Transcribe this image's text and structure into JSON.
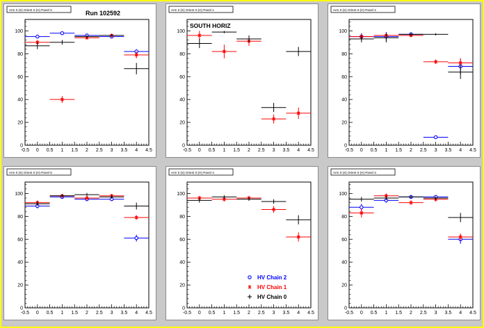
{
  "canvas": {
    "background": "#c9c9c9",
    "frame": "#ffff00",
    "frame_color": "#ffff00"
  },
  "run_label": "Run 102592",
  "side_label": "SOUTH HORIZ",
  "legend": [
    {
      "label": "HV Chain 2",
      "color": "#0000ff",
      "marker": "circle"
    },
    {
      "label": "HV Chain 1",
      "color": "#ff0000",
      "marker": "star"
    },
    {
      "label": "HV Chain 0",
      "color": "#000000",
      "marker": "plus"
    }
  ],
  "chart_data": [
    {
      "type": "scatter",
      "title": "Arm 0 (S) Orient 0 (H) Panel 0",
      "xlim": [
        -0.5,
        4.5
      ],
      "ylim": [
        0,
        110
      ],
      "xticks": [
        "-0.5",
        "0",
        "0.5",
        "1",
        "1.5",
        "2",
        "2.5",
        "3",
        "3.5",
        "4",
        "4.5"
      ],
      "yticks": [
        "0",
        "20",
        "40",
        "60",
        "80",
        "100"
      ],
      "series": [
        {
          "name": "HV Chain 2",
          "color": "#0000ff",
          "points": [
            {
              "x": 0,
              "y": 95,
              "e": 1
            },
            {
              "x": 1,
              "y": 98,
              "e": 1
            },
            {
              "x": 2,
              "y": 96,
              "e": 1
            },
            {
              "x": 3,
              "y": 95,
              "e": 1
            },
            {
              "x": 4,
              "y": 82,
              "e": 2
            }
          ]
        },
        {
          "name": "HV Chain 1",
          "color": "#ff0000",
          "points": [
            {
              "x": 0,
              "y": 90,
              "e": 2
            },
            {
              "x": 1,
              "y": 40,
              "e": 3
            },
            {
              "x": 2,
              "y": 94,
              "e": 1.5
            },
            {
              "x": 3,
              "y": 96,
              "e": 1.5
            },
            {
              "x": 4,
              "y": 79,
              "e": 3
            }
          ]
        },
        {
          "name": "HV Chain 0",
          "color": "#000000",
          "points": [
            {
              "x": 0,
              "y": 87,
              "e": 3
            },
            {
              "x": 1,
              "y": 90,
              "e": 2
            },
            {
              "x": 2,
              "y": 95,
              "e": 1.5
            },
            {
              "x": 3,
              "y": 96,
              "e": 1
            },
            {
              "x": 4,
              "y": 67,
              "e": 5
            }
          ]
        }
      ]
    },
    {
      "type": "scatter",
      "title": "Arm 0 (S) Orient 0 (H) Panel 1",
      "xlim": [
        -0.5,
        4.5
      ],
      "ylim": [
        0,
        110
      ],
      "xticks": [
        "-0.5",
        "0",
        "0.5",
        "1",
        "1.5",
        "2",
        "2.5",
        "3",
        "3.5",
        "4",
        "4.5"
      ],
      "yticks": [
        "0",
        "20",
        "40",
        "60",
        "80",
        "100"
      ],
      "series": [
        {
          "name": "HV Chain 2",
          "color": "#0000ff",
          "points": []
        },
        {
          "name": "HV Chain 1",
          "color": "#ff0000",
          "points": [
            {
              "x": 0,
              "y": 96,
              "e": 4
            },
            {
              "x": 1,
              "y": 82,
              "e": 6
            },
            {
              "x": 2,
              "y": 91,
              "e": 4
            },
            {
              "x": 3,
              "y": 23,
              "e": 4
            },
            {
              "x": 4,
              "y": 28,
              "e": 5
            }
          ]
        },
        {
          "name": "HV Chain 0",
          "color": "#000000",
          "points": [
            {
              "x": 0,
              "y": 89,
              "e": 4
            },
            {
              "x": 1,
              "y": 99,
              "e": 1
            },
            {
              "x": 2,
              "y": 93,
              "e": 3
            },
            {
              "x": 3,
              "y": 33,
              "e": 4
            },
            {
              "x": 4,
              "y": 82,
              "e": 4
            }
          ]
        }
      ]
    },
    {
      "type": "scatter",
      "title": "Arm 0 (S) Orient 0 (H) Panel 2",
      "xlim": [
        -0.5,
        4.5
      ],
      "ylim": [
        0,
        110
      ],
      "xticks": [
        "-0.5",
        "0",
        "0.5",
        "1",
        "1.5",
        "2",
        "2.5",
        "3",
        "3.5",
        "4",
        "4.5"
      ],
      "yticks": [
        "0",
        "20",
        "40",
        "60",
        "80",
        "100"
      ],
      "series": [
        {
          "name": "HV Chain 2",
          "color": "#0000ff",
          "points": [
            {
              "x": 0,
              "y": 95,
              "e": 3
            },
            {
              "x": 1,
              "y": 95,
              "e": 4
            },
            {
              "x": 2,
              "y": 97,
              "e": 1.5
            },
            {
              "x": 3,
              "y": 7,
              "e": 1
            },
            {
              "x": 4,
              "y": 69,
              "e": 7
            }
          ]
        },
        {
          "name": "HV Chain 1",
          "color": "#ff0000",
          "points": [
            {
              "x": 0,
              "y": 95,
              "e": 2
            },
            {
              "x": 1,
              "y": 96,
              "e": 2
            },
            {
              "x": 2,
              "y": 96,
              "e": 1.5
            },
            {
              "x": 3,
              "y": 73,
              "e": 2
            },
            {
              "x": 4,
              "y": 72,
              "e": 4
            }
          ]
        },
        {
          "name": "HV Chain 0",
          "color": "#000000",
          "points": [
            {
              "x": 0,
              "y": 93,
              "e": 3
            },
            {
              "x": 1,
              "y": 94,
              "e": 4
            },
            {
              "x": 2,
              "y": 97,
              "e": 1.5
            },
            {
              "x": 3,
              "y": 97,
              "e": 1
            },
            {
              "x": 4,
              "y": 64,
              "e": 6
            }
          ]
        }
      ]
    },
    {
      "type": "scatter",
      "title": "Arm 0 (S) Orient 0 (H) Panel 5",
      "xlim": [
        -0.5,
        4.5
      ],
      "ylim": [
        0,
        110
      ],
      "xticks": [
        "-0.5",
        "0",
        "0.5",
        "1",
        "1.5",
        "2",
        "2.5",
        "3",
        "3.5",
        "4",
        "4.5"
      ],
      "yticks": [
        "0",
        "20",
        "40",
        "60",
        "80",
        "100"
      ],
      "series": [
        {
          "name": "HV Chain 2",
          "color": "#0000ff",
          "points": [
            {
              "x": 0,
              "y": 89,
              "e": 2
            },
            {
              "x": 1,
              "y": 97,
              "e": 1.5
            },
            {
              "x": 2,
              "y": 95,
              "e": 1.5
            },
            {
              "x": 3,
              "y": 95,
              "e": 1.5
            },
            {
              "x": 4,
              "y": 61,
              "e": 3
            }
          ]
        },
        {
          "name": "HV Chain 1",
          "color": "#ff0000",
          "points": [
            {
              "x": 0,
              "y": 92,
              "e": 2
            },
            {
              "x": 1,
              "y": 98,
              "e": 1.5
            },
            {
              "x": 2,
              "y": 96,
              "e": 1.5
            },
            {
              "x": 3,
              "y": 98,
              "e": 1.5
            },
            {
              "x": 4,
              "y": 79,
              "e": 2
            }
          ]
        },
        {
          "name": "HV Chain 0",
          "color": "#000000",
          "points": [
            {
              "x": 0,
              "y": 91,
              "e": 2
            },
            {
              "x": 1,
              "y": 98,
              "e": 1.5
            },
            {
              "x": 2,
              "y": 99,
              "e": 1.5
            },
            {
              "x": 3,
              "y": 97,
              "e": 1.5
            },
            {
              "x": 4,
              "y": 89,
              "e": 3
            }
          ]
        }
      ]
    },
    {
      "type": "scatter",
      "title": "Arm 0 (S) Orient 0 (H) Panel 4",
      "xlim": [
        -0.5,
        4.5
      ],
      "ylim": [
        0,
        110
      ],
      "xticks": [
        "-0.5",
        "0",
        "0.5",
        "1",
        "1.5",
        "2",
        "2.5",
        "3",
        "3.5",
        "4",
        "4.5"
      ],
      "yticks": [
        "0",
        "20",
        "40",
        "60",
        "80",
        "100"
      ],
      "series": [
        {
          "name": "HV Chain 2",
          "color": "#0000ff",
          "points": []
        },
        {
          "name": "HV Chain 1",
          "color": "#ff0000",
          "points": [
            {
              "x": 0,
              "y": 96,
              "e": 2
            },
            {
              "x": 1,
              "y": 95,
              "e": 2
            },
            {
              "x": 2,
              "y": 96,
              "e": 2
            },
            {
              "x": 3,
              "y": 86,
              "e": 3
            },
            {
              "x": 4,
              "y": 62,
              "e": 4
            }
          ]
        },
        {
          "name": "HV Chain 0",
          "color": "#000000",
          "points": [
            {
              "x": 0,
              "y": 94,
              "e": 2
            },
            {
              "x": 1,
              "y": 97,
              "e": 1.5
            },
            {
              "x": 2,
              "y": 95,
              "e": 1.5
            },
            {
              "x": 3,
              "y": 93,
              "e": 2
            },
            {
              "x": 4,
              "y": 77,
              "e": 4
            }
          ]
        }
      ]
    },
    {
      "type": "scatter",
      "title": "Arm 0 (S) Orient 0 (H) Panel 3",
      "xlim": [
        -0.5,
        4.5
      ],
      "ylim": [
        0,
        110
      ],
      "xticks": [
        "-0.5",
        "0",
        "0.5",
        "1",
        "1.5",
        "2",
        "2.5",
        "3",
        "3.5",
        "4",
        "4.5"
      ],
      "yticks": [
        "0",
        "20",
        "40",
        "60",
        "80",
        "100"
      ],
      "series": [
        {
          "name": "HV Chain 2",
          "color": "#0000ff",
          "points": [
            {
              "x": 0,
              "y": 88,
              "e": 3
            },
            {
              "x": 1,
              "y": 94,
              "e": 2
            },
            {
              "x": 2,
              "y": 97,
              "e": 1
            },
            {
              "x": 3,
              "y": 97,
              "e": 1.5
            },
            {
              "x": 4,
              "y": 60,
              "e": 4
            }
          ]
        },
        {
          "name": "HV Chain 1",
          "color": "#ff0000",
          "points": [
            {
              "x": 0,
              "y": 83,
              "e": 4
            },
            {
              "x": 1,
              "y": 98,
              "e": 2
            },
            {
              "x": 2,
              "y": 92,
              "e": 2
            },
            {
              "x": 3,
              "y": 95,
              "e": 2
            },
            {
              "x": 4,
              "y": 62,
              "e": 3
            }
          ]
        },
        {
          "name": "HV Chain 0",
          "color": "#000000",
          "points": [
            {
              "x": 0,
              "y": 95,
              "e": 2
            },
            {
              "x": 1,
              "y": 96,
              "e": 2
            },
            {
              "x": 2,
              "y": 97,
              "e": 1
            },
            {
              "x": 3,
              "y": 96,
              "e": 1.5
            },
            {
              "x": 4,
              "y": 79,
              "e": 4
            }
          ]
        }
      ]
    }
  ]
}
